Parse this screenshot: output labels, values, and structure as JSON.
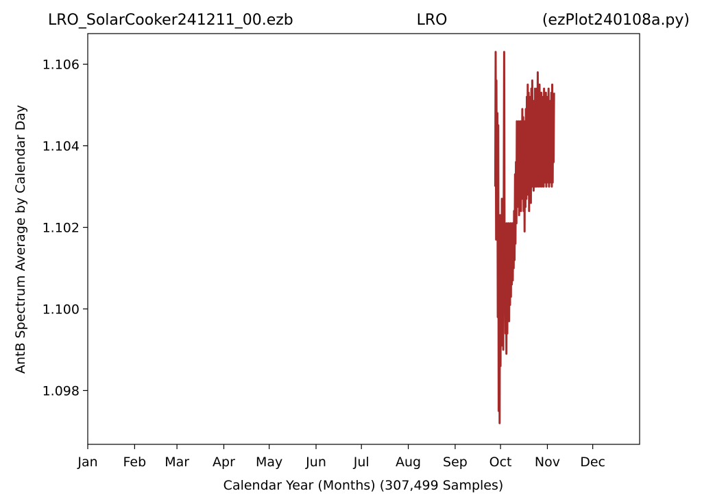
{
  "chart_data": {
    "type": "line",
    "title": {
      "left": "LRO_SolarCooker241211_00.ezb",
      "center": "LRO",
      "right": "(ezPlot240108a.py)"
    },
    "xlabel": "Calendar Year (Months) (307,499 Samples)",
    "ylabel": "AntB Spectrum Average by Calendar Day",
    "xlim": [
      1,
      366
    ],
    "ylim": [
      1.09668,
      1.10675
    ],
    "x_ticks": [
      {
        "label": "Jan",
        "value": 1
      },
      {
        "label": "Feb",
        "value": 32
      },
      {
        "label": "Mar",
        "value": 60
      },
      {
        "label": "Apr",
        "value": 91
      },
      {
        "label": "May",
        "value": 121
      },
      {
        "label": "Jun",
        "value": 152
      },
      {
        "label": "Jul",
        "value": 182
      },
      {
        "label": "Aug",
        "value": 213
      },
      {
        "label": "Sep",
        "value": 244
      },
      {
        "label": "Oct",
        "value": 274
      },
      {
        "label": "Nov",
        "value": 305
      },
      {
        "label": "Dec",
        "value": 335
      }
    ],
    "y_ticks": [
      {
        "label": "1.098",
        "value": 1.098
      },
      {
        "label": "1.100",
        "value": 1.1
      },
      {
        "label": "1.102",
        "value": 1.102
      },
      {
        "label": "1.104",
        "value": 1.104
      },
      {
        "label": "1.106",
        "value": 1.106
      }
    ],
    "grid": false,
    "legend": "none",
    "line_color": "#a52a2a",
    "series": [
      {
        "x": [
          270.5,
          270.8,
          271.1,
          271.3,
          271.6,
          271.9,
          272.2,
          272.5,
          272.8,
          273.1,
          273.4,
          273.7,
          274.0,
          274.3,
          274.6,
          274.9,
          275.2,
          275.5,
          275.8,
          276.1,
          276.4,
          276.7,
          277.0,
          277.3,
          277.6,
          277.9,
          278.2,
          278.5,
          278.8,
          279.1,
          279.4,
          279.7,
          280.0,
          280.3,
          280.6,
          280.9,
          281.2,
          281.5,
          281.8,
          282.1,
          282.4,
          282.7,
          283.0,
          283.3,
          283.6,
          283.9,
          284.2,
          284.5,
          284.8,
          285.1,
          285.4,
          285.7,
          286.0,
          286.3,
          286.6,
          286.9,
          287.2,
          287.5,
          287.8,
          288.1,
          288.4,
          288.7,
          289.0,
          289.3,
          289.6,
          289.9,
          290.2,
          290.5,
          290.8,
          291.1,
          291.4,
          291.7,
          292.0,
          292.3,
          292.6,
          292.9,
          293.2,
          293.5,
          293.8,
          294.1,
          294.4,
          294.7,
          295.0,
          295.3,
          295.6,
          295.9,
          296.2,
          296.5,
          296.8,
          297.1,
          297.4,
          297.7,
          298.0,
          298.3,
          298.6,
          298.9,
          299.2,
          299.5,
          299.8,
          300.1,
          300.4,
          300.7,
          301.0,
          301.3,
          301.6,
          301.9,
          302.2,
          302.5,
          302.8,
          303.1,
          303.4,
          303.7,
          304.0,
          304.3,
          304.6,
          304.9,
          305.2,
          305.5,
          305.8,
          306.1,
          306.4,
          306.7,
          307.0,
          307.3,
          307.6,
          307.9,
          308.2,
          308.5,
          308.8,
          309.1,
          309.4
        ],
        "y": [
          1.103,
          1.1063,
          1.1017,
          1.1056,
          1.1022,
          1.1048,
          1.0998,
          1.1045,
          1.0975,
          1.1015,
          1.0972,
          1.1023,
          1.0986,
          1.1018,
          1.0991,
          1.1027,
          1.0996,
          1.1019,
          1.099,
          1.1021,
          1.1063,
          1.1008,
          1.1021,
          1.0994,
          1.1016,
          1.0989,
          1.1021,
          1.0994,
          1.102,
          1.0998,
          1.1021,
          1.0997,
          1.102,
          1.1001,
          1.1021,
          1.1003,
          1.102,
          1.1006,
          1.1021,
          1.1007,
          1.102,
          1.101,
          1.1024,
          1.1012,
          1.1033,
          1.1016,
          1.1036,
          1.1021,
          1.1046,
          1.1025,
          1.1041,
          1.1028,
          1.1046,
          1.1023,
          1.1042,
          1.1026,
          1.1046,
          1.1024,
          1.1044,
          1.1027,
          1.1049,
          1.1028,
          1.1047,
          1.1024,
          1.1044,
          1.1019,
          1.1046,
          1.1025,
          1.1049,
          1.1027,
          1.1052,
          1.1031,
          1.1055,
          1.1028,
          1.1053,
          1.1024,
          1.1052,
          1.103,
          1.105,
          1.1026,
          1.1054,
          1.1032,
          1.1056,
          1.103,
          1.1048,
          1.1029,
          1.1051,
          1.1031,
          1.1054,
          1.103,
          1.105,
          1.103,
          1.1054,
          1.1032,
          1.1058,
          1.103,
          1.1051,
          1.1033,
          1.1055,
          1.103,
          1.1052,
          1.1032,
          1.1053,
          1.103,
          1.1051,
          1.1032,
          1.1052,
          1.103,
          1.1054,
          1.1031,
          1.105,
          1.1032,
          1.1053,
          1.103,
          1.1051,
          1.1032,
          1.1052,
          1.1031,
          1.1054,
          1.103,
          1.105,
          1.1031,
          1.1051,
          1.1032,
          1.1053,
          1.103,
          1.1055,
          1.1031,
          1.1052,
          1.1036,
          1.1053
        ]
      }
    ]
  }
}
